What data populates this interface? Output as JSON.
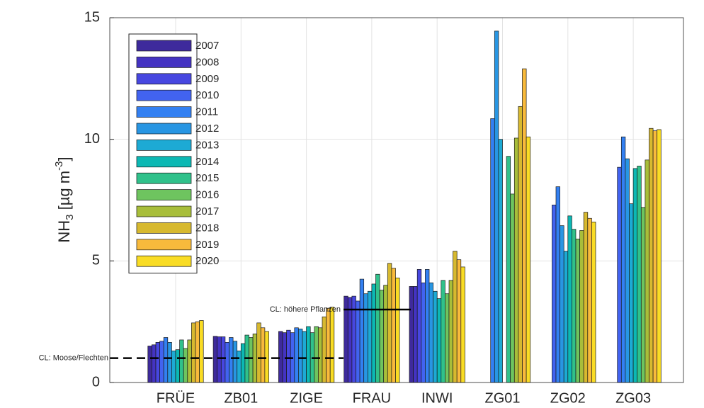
{
  "chart_data": {
    "type": "bar",
    "ylabel": [
      "NH",
      "3",
      " [µg m",
      "-3",
      "]"
    ],
    "categories": [
      "FRÜE",
      "ZB01",
      "ZIGE",
      "FRAU",
      "INWI",
      "ZG01",
      "ZG02",
      "ZG03"
    ],
    "series": [
      {
        "name": "2007",
        "color": "#3e2a9c",
        "values": [
          1.5,
          1.9,
          2.1,
          3.55,
          3.95,
          null,
          null,
          null
        ]
      },
      {
        "name": "2008",
        "color": "#4433c2",
        "values": [
          1.55,
          1.88,
          2.05,
          3.5,
          3.95,
          null,
          null,
          null
        ]
      },
      {
        "name": "2009",
        "color": "#4747e0",
        "values": [
          1.65,
          1.88,
          2.15,
          3.55,
          4.65,
          null,
          null,
          null
        ]
      },
      {
        "name": "2010",
        "color": "#4263f0",
        "values": [
          1.7,
          1.65,
          2.05,
          3.35,
          4.1,
          null,
          7.3,
          8.85
        ]
      },
      {
        "name": "2011",
        "color": "#3380f2",
        "values": [
          1.85,
          1.85,
          2.25,
          4.25,
          4.65,
          10.85,
          8.05,
          10.1
        ]
      },
      {
        "name": "2012",
        "color": "#2896e3",
        "values": [
          1.65,
          1.7,
          2.2,
          3.65,
          4.1,
          14.45,
          6.45,
          9.2
        ]
      },
      {
        "name": "2013",
        "color": "#1daad4",
        "values": [
          1.3,
          1.3,
          2.1,
          3.75,
          3.75,
          10.0,
          5.4,
          7.35
        ]
      },
      {
        "name": "2014",
        "color": "#0cb8b4",
        "values": [
          1.35,
          1.6,
          2.3,
          4.05,
          3.45,
          null,
          6.85,
          8.8
        ]
      },
      {
        "name": "2015",
        "color": "#30c18b",
        "values": [
          1.75,
          1.95,
          2.05,
          4.45,
          4.2,
          9.3,
          6.3,
          8.9
        ]
      },
      {
        "name": "2016",
        "color": "#6ec45f",
        "values": [
          1.4,
          1.85,
          2.3,
          3.8,
          3.65,
          7.75,
          5.9,
          7.2
        ]
      },
      {
        "name": "2017",
        "color": "#a8be3a",
        "values": [
          1.75,
          2.0,
          2.25,
          4.0,
          4.2,
          10.05,
          6.25,
          9.15
        ]
      },
      {
        "name": "2018",
        "color": "#d7b92f",
        "values": [
          2.45,
          2.45,
          2.7,
          4.9,
          5.4,
          11.35,
          7.0,
          10.45
        ]
      },
      {
        "name": "2019",
        "color": "#f8ba3c",
        "values": [
          2.5,
          2.25,
          3.05,
          4.7,
          5.05,
          12.9,
          6.75,
          10.35
        ]
      },
      {
        "name": "2020",
        "color": "#f9dc24",
        "values": [
          2.55,
          2.1,
          3.1,
          4.3,
          4.75,
          10.1,
          6.6,
          10.4
        ]
      }
    ],
    "reference_lines": [
      {
        "label": "CL: Moose/Flechten",
        "value": 1,
        "style": "dashed"
      },
      {
        "label": "CL: höhere Pflanzen",
        "value": 3,
        "style": "solid"
      }
    ],
    "ylim": [
      0,
      15
    ],
    "yticks": [
      0,
      5,
      10,
      15
    ],
    "grid": true,
    "legend": "upper left"
  }
}
